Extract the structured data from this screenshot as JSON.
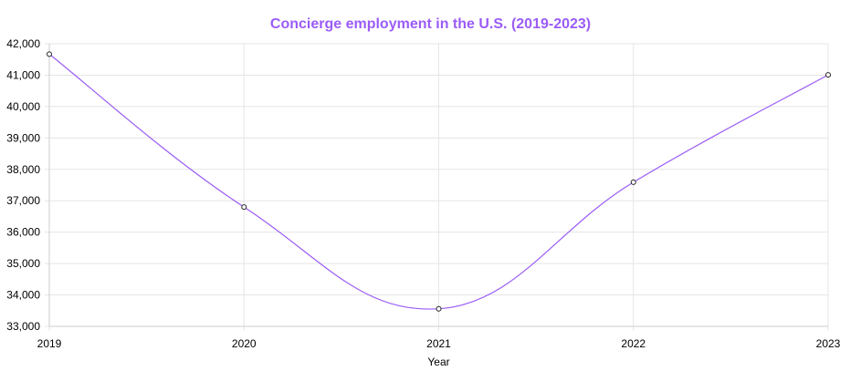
{
  "chart_data": {
    "type": "line",
    "title": "Concierge employment in the U.S. (2019-2023)",
    "xlabel": "Year",
    "ylabel": "",
    "categories": [
      "2019",
      "2020",
      "2021",
      "2022",
      "2023"
    ],
    "series": [
      {
        "values": [
          41670,
          36800,
          33560,
          37590,
          41010
        ]
      }
    ],
    "ylim": [
      33000,
      42000
    ],
    "yticks": [
      33000,
      34000,
      35000,
      36000,
      37000,
      38000,
      39000,
      40000,
      41000,
      42000
    ],
    "ytick_labels": [
      "33,000",
      "34,000",
      "35,000",
      "36,000",
      "37,000",
      "38,000",
      "39,000",
      "40,000",
      "41,000",
      "42,000"
    ],
    "grid": true,
    "legend": "none",
    "line_color": "#9b5cf6",
    "title_color": "#9b5cf6",
    "grid_color": "#e5e5e5"
  }
}
